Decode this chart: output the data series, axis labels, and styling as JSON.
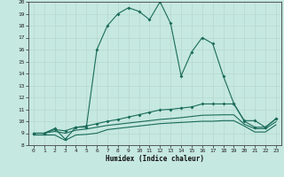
{
  "xlabel": "Humidex (Indice chaleur)",
  "background_color": "#c5e8e0",
  "line_color": "#1a6b5a",
  "grid_color": "#b8d8d0",
  "xlim": [
    -0.5,
    23.5
  ],
  "ylim": [
    8,
    20
  ],
  "xticks": [
    0,
    1,
    2,
    3,
    4,
    5,
    6,
    7,
    8,
    9,
    10,
    11,
    12,
    13,
    14,
    15,
    16,
    17,
    18,
    19,
    20,
    21,
    22,
    23
  ],
  "yticks": [
    8,
    9,
    10,
    11,
    12,
    13,
    14,
    15,
    16,
    17,
    18,
    19,
    20
  ],
  "line1_x": [
    0,
    1,
    2,
    3,
    4,
    5,
    6,
    7,
    8,
    9,
    10,
    11,
    12,
    13,
    14,
    15,
    16,
    17,
    18,
    19,
    20,
    21,
    22,
    23
  ],
  "line1_y": [
    9.0,
    9.0,
    9.4,
    8.5,
    9.5,
    9.5,
    16.0,
    18.0,
    19.0,
    19.5,
    19.2,
    18.5,
    20.0,
    18.2,
    13.8,
    15.8,
    17.0,
    16.5,
    13.8,
    11.5,
    10.0,
    9.5,
    9.5,
    10.2
  ],
  "line1_markers": [
    0,
    1,
    2,
    3,
    4,
    5,
    6,
    7,
    8,
    9,
    10,
    11,
    12,
    13,
    14,
    15,
    16,
    17,
    18,
    19,
    20,
    21,
    22,
    23
  ],
  "line2_x": [
    0,
    1,
    2,
    3,
    4,
    5,
    6,
    7,
    8,
    9,
    10,
    11,
    12,
    13,
    14,
    15,
    16,
    17,
    18,
    19,
    20,
    21,
    22,
    23
  ],
  "line2_y": [
    9.0,
    9.0,
    9.3,
    9.2,
    9.5,
    9.6,
    9.8,
    10.0,
    10.15,
    10.35,
    10.55,
    10.75,
    10.95,
    11.0,
    11.1,
    11.2,
    11.45,
    11.45,
    11.45,
    11.45,
    10.05,
    10.05,
    9.5,
    10.2
  ],
  "line3_x": [
    0,
    1,
    2,
    3,
    4,
    5,
    6,
    7,
    8,
    9,
    10,
    11,
    12,
    13,
    14,
    15,
    16,
    17,
    18,
    19,
    20,
    21,
    22,
    23
  ],
  "line3_y": [
    9.0,
    9.0,
    9.15,
    9.0,
    9.25,
    9.35,
    9.5,
    9.65,
    9.75,
    9.85,
    9.95,
    10.05,
    10.15,
    10.22,
    10.3,
    10.4,
    10.5,
    10.52,
    10.54,
    10.54,
    9.75,
    9.38,
    9.38,
    9.95
  ],
  "line4_x": [
    0,
    1,
    2,
    3,
    4,
    5,
    6,
    7,
    8,
    9,
    10,
    11,
    12,
    13,
    14,
    15,
    16,
    17,
    18,
    19,
    20,
    21,
    22,
    23
  ],
  "line4_y": [
    8.85,
    8.85,
    8.85,
    8.4,
    8.85,
    8.9,
    9.0,
    9.3,
    9.4,
    9.5,
    9.6,
    9.7,
    9.8,
    9.85,
    9.9,
    9.95,
    10.0,
    10.0,
    10.05,
    10.05,
    9.6,
    9.1,
    9.1,
    9.7
  ]
}
